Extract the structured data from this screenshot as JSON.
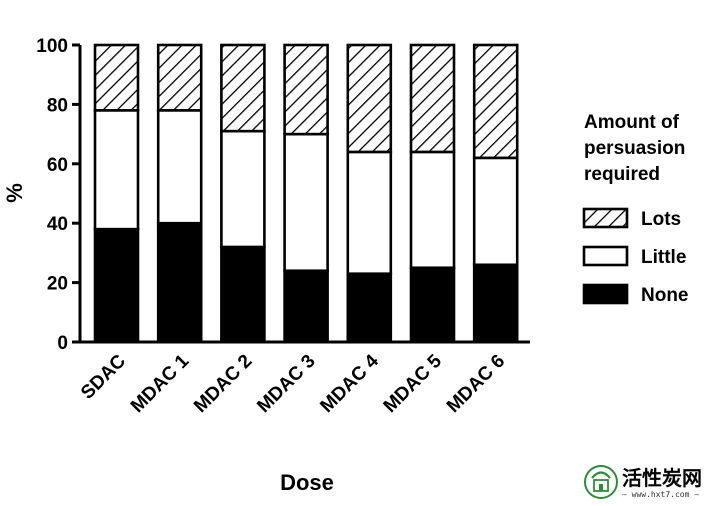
{
  "chart_data": {
    "type": "bar",
    "stacked": true,
    "percent": true,
    "categories": [
      "SDAC",
      "MDAC 1",
      "MDAC 2",
      "MDAC 3",
      "MDAC 4",
      "MDAC 5",
      "MDAC 6"
    ],
    "series": [
      {
        "name": "None",
        "values": [
          38,
          40,
          32,
          24,
          23,
          25,
          26
        ],
        "fill": "#000000"
      },
      {
        "name": "Little",
        "values": [
          40,
          38,
          39,
          46,
          41,
          39,
          36
        ],
        "fill": "#ffffff"
      },
      {
        "name": "Lots",
        "values": [
          22,
          22,
          29,
          30,
          36,
          36,
          38
        ],
        "fill": "hatch"
      }
    ],
    "legend_order": [
      "Lots",
      "Little",
      "None"
    ],
    "xlabel": "Dose",
    "ylabel": "%",
    "ylim": [
      0,
      100
    ],
    "yticks": [
      "0",
      "20",
      "40",
      "60",
      "80",
      "100"
    ],
    "grid": false,
    "legend": {
      "title_lines": [
        "Amount of",
        "persuasion",
        "required"
      ],
      "placement": "right"
    }
  },
  "watermark": {
    "text": "活性炭网",
    "url": "— www.hxt7.com —",
    "icon": "activated-carbon-logo"
  }
}
